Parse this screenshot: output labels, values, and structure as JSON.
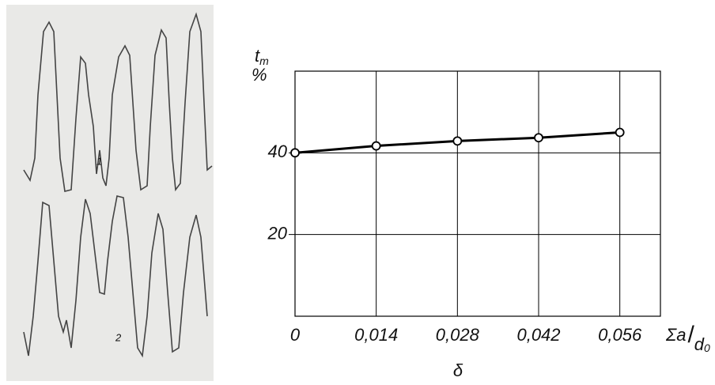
{
  "figure": {
    "trace_labels": [
      "1",
      "2"
    ]
  },
  "chart_data": {
    "type": "line",
    "y_label": {
      "symbol": "t",
      "subscript": "m",
      "unit": "%"
    },
    "x_label": {
      "numerator": "Σa",
      "denominator": "d",
      "denominator_subscript": "0",
      "symbol": "δ"
    },
    "x": [
      0,
      0.014,
      0.028,
      0.042,
      0.056
    ],
    "series": [
      {
        "color": "#000000",
        "values": [
          40,
          41.7,
          42.9,
          43.7,
          45
        ]
      }
    ],
    "xlim": [
      0,
      0.063
    ],
    "ylim": [
      0,
      60
    ],
    "xticks": [
      0,
      {
        "value": 0.014,
        "label": "0,014"
      },
      {
        "value": 0.028,
        "label": "0,028"
      },
      {
        "value": 0.042,
        "label": "0,042"
      },
      {
        "value": 0.056,
        "label": "0,056"
      }
    ],
    "yticks": [
      20,
      40
    ],
    "grid": true
  }
}
